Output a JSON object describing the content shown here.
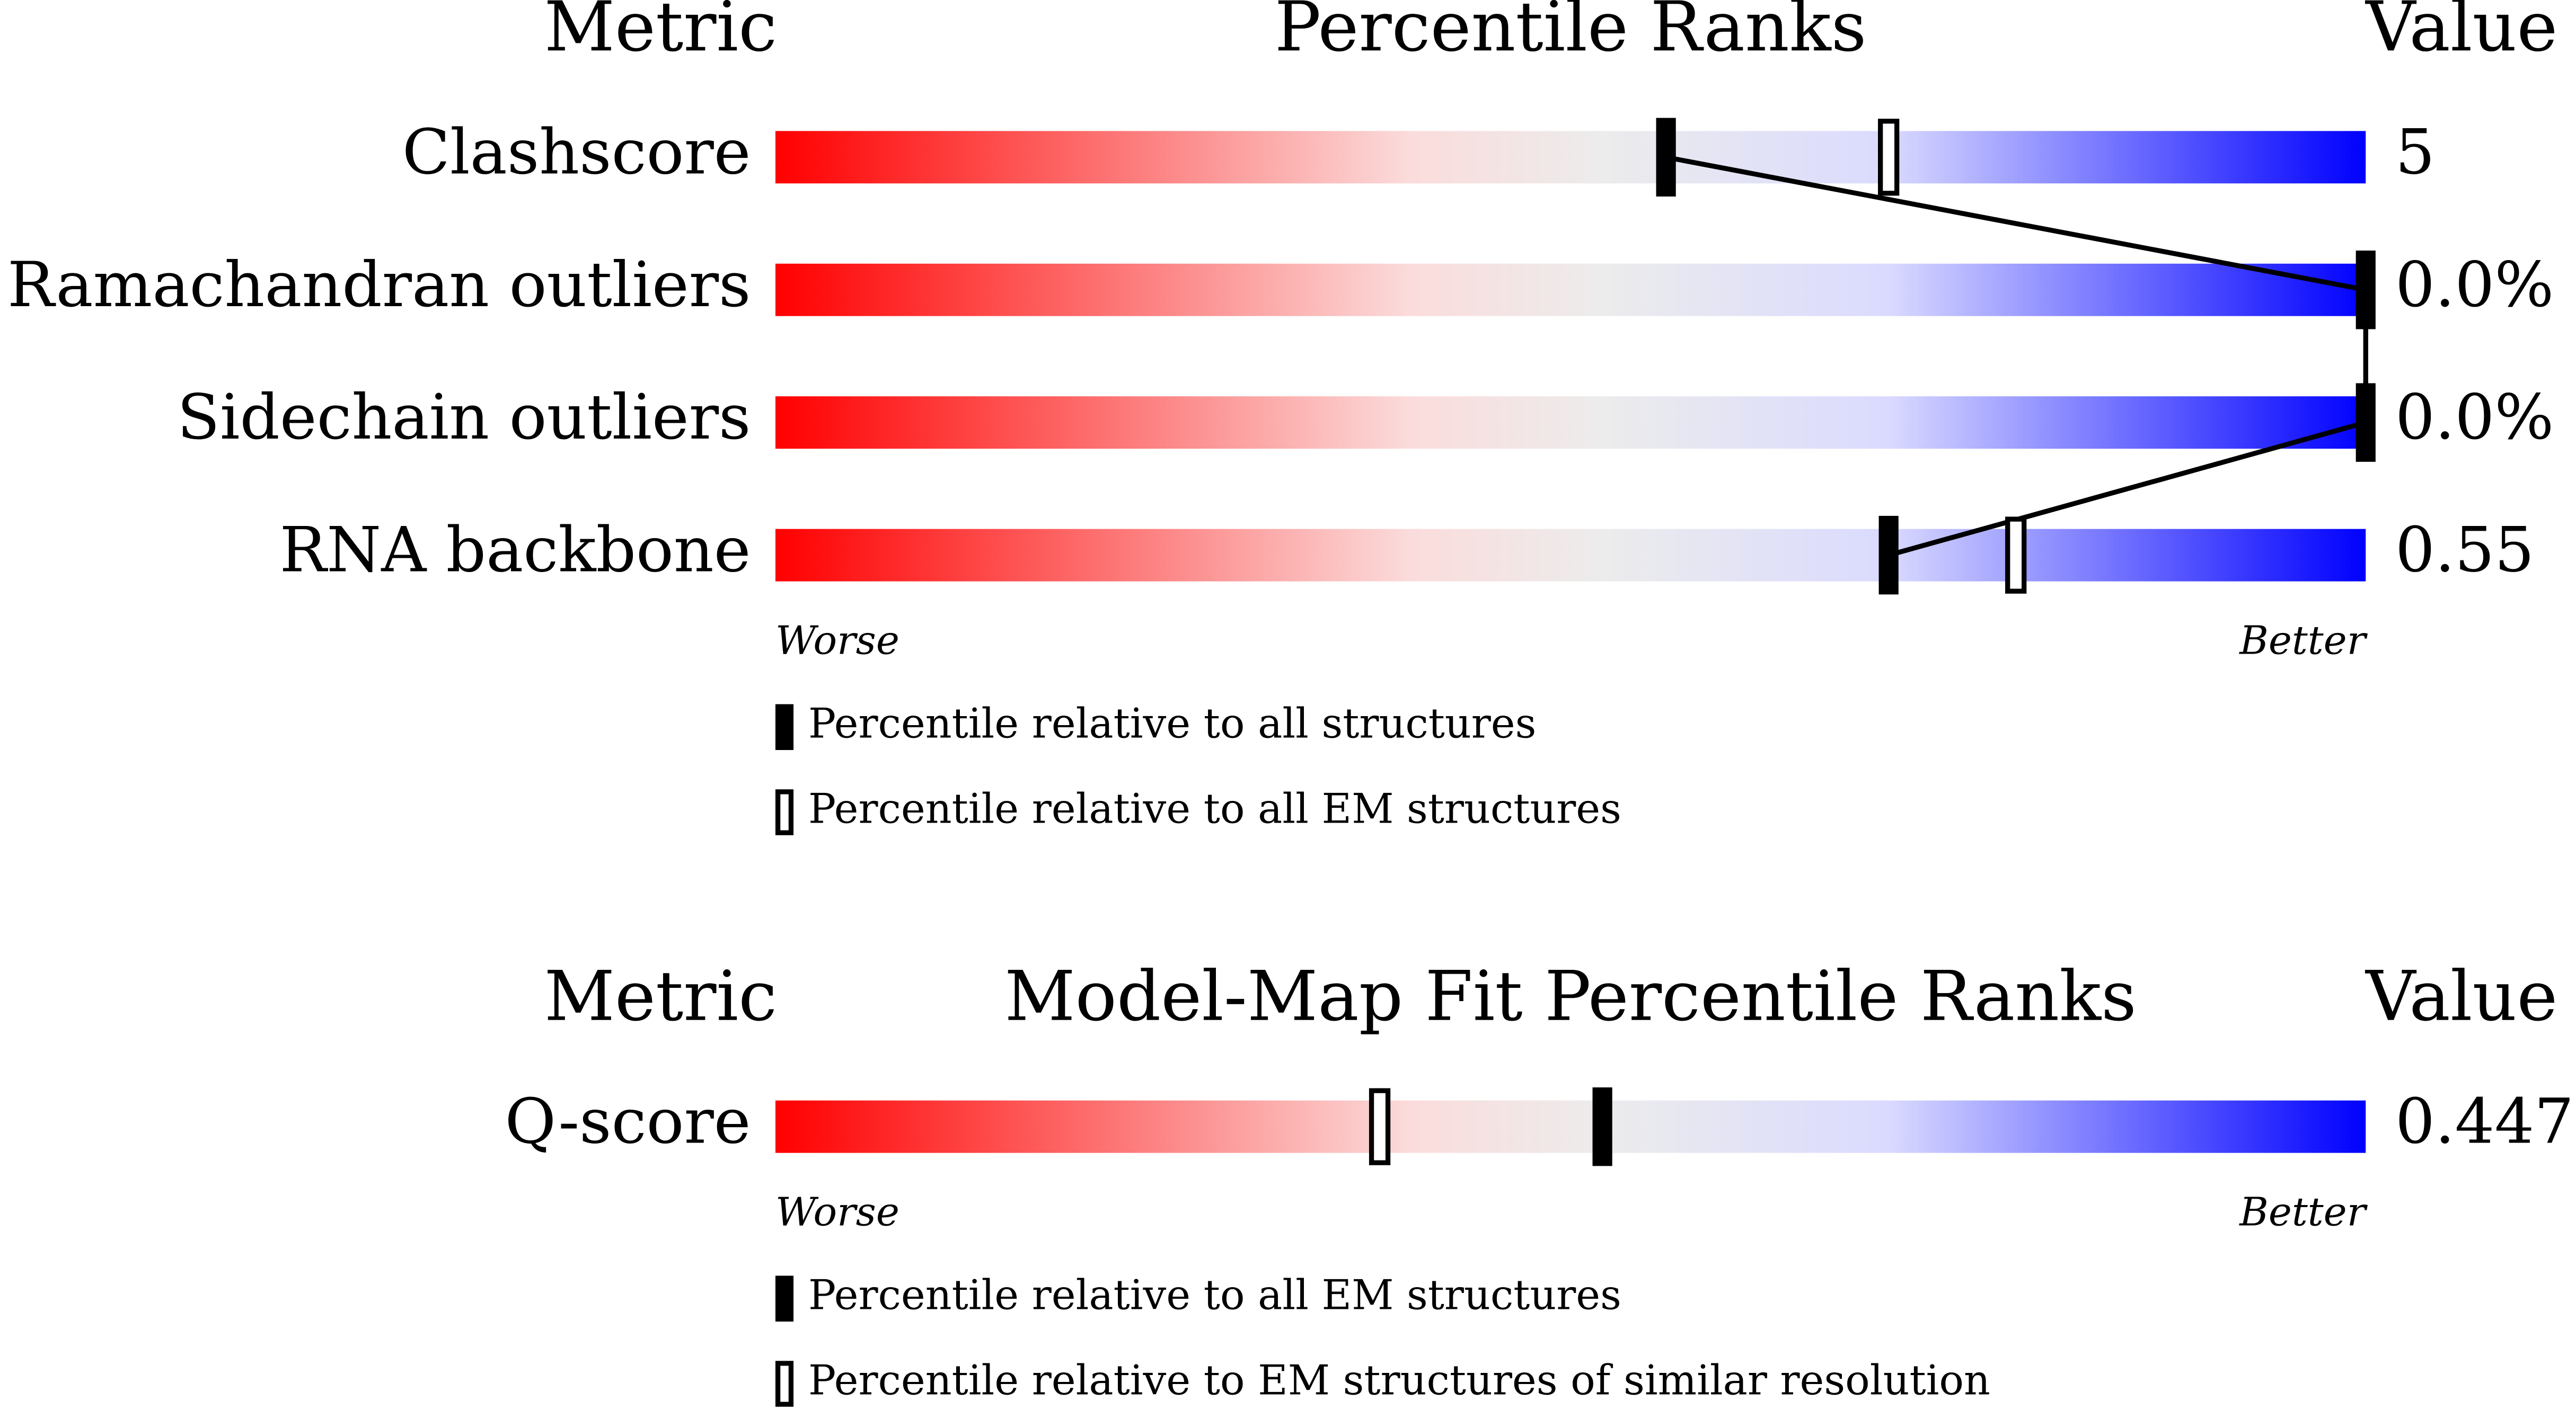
{
  "chart_data": [
    {
      "type": "percentile-slider",
      "metric_header": "Metric",
      "title": "Percentile Ranks",
      "value_header": "Value",
      "categories": [
        "Clashscore",
        "Ramachandran outliers",
        "Sidechain outliers",
        "RNA backbone"
      ],
      "metric_values": [
        "5",
        "0.0%",
        "0.0%",
        "0.55"
      ],
      "worse_label": "Worse",
      "better_label": "Better",
      "xlim": [
        0,
        100
      ],
      "series": [
        {
          "name": "Percentile relative to all structures",
          "style": "filled",
          "color": "#000000",
          "values": [
            56,
            100,
            100,
            70
          ]
        },
        {
          "name": "Percentile relative to all EM structures",
          "style": "hollow",
          "color": "#000000",
          "values": [
            70,
            null,
            null,
            78
          ]
        }
      ]
    },
    {
      "type": "percentile-slider",
      "metric_header": "Metric",
      "title": "Model-Map Fit Percentile Ranks",
      "value_header": "Value",
      "categories": [
        "Q-score"
      ],
      "metric_values": [
        "0.447"
      ],
      "worse_label": "Worse",
      "better_label": "Better",
      "xlim": [
        0,
        100
      ],
      "series": [
        {
          "name": "Percentile relative to all EM structures",
          "style": "filled",
          "color": "#000000",
          "values": [
            52
          ]
        },
        {
          "name": "Percentile relative to EM structures of similar resolution",
          "style": "hollow",
          "color": "#000000",
          "values": [
            38
          ]
        }
      ]
    }
  ]
}
